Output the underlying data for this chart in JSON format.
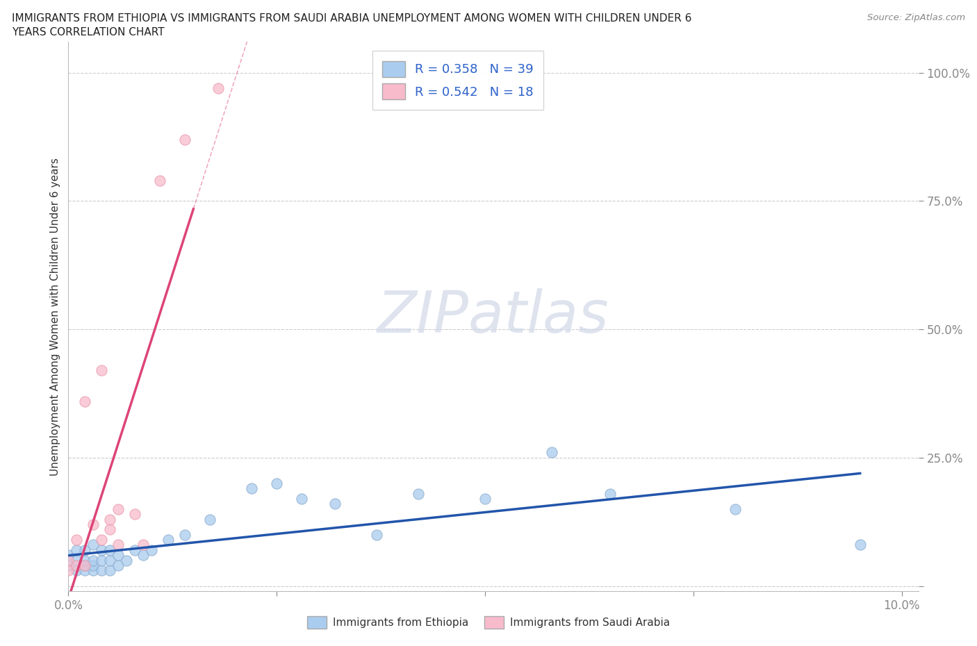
{
  "title_line1": "IMMIGRANTS FROM ETHIOPIA VS IMMIGRANTS FROM SAUDI ARABIA UNEMPLOYMENT AMONG WOMEN WITH CHILDREN UNDER 6",
  "title_line2": "YEARS CORRELATION CHART",
  "source": "Source: ZipAtlas.com",
  "ylabel": "Unemployment Among Women with Children Under 6 years",
  "xlim": [
    0.0,
    0.102
  ],
  "ylim": [
    -0.01,
    1.06
  ],
  "xtick_positions": [
    0.0,
    0.025,
    0.05,
    0.075,
    0.1
  ],
  "xticklabels": [
    "0.0%",
    "",
    "",
    "",
    "10.0%"
  ],
  "ytick_positions": [
    0.0,
    0.25,
    0.5,
    0.75,
    1.0
  ],
  "yticklabels": [
    "",
    "25.0%",
    "50.0%",
    "75.0%",
    "100.0%"
  ],
  "background_color": "#ffffff",
  "grid_color": "#cccccc",
  "watermark_text": "ZIPatlas",
  "ethiopia_fill": "#aaccee",
  "ethiopia_edge": "#88aacc",
  "ethiopia_line": "#2255aa",
  "saudi_fill": "#f8bbcc",
  "saudi_edge": "#e899aa",
  "saudi_line": "#dd4477",
  "legend_eth_label": "R = 0.358   N = 39",
  "legend_sau_label": "R = 0.542   N = 18",
  "bottom_eth_label": "Immigrants from Ethiopia",
  "bottom_sau_label": "Immigrants from Saudi Arabia",
  "ethiopia_x": [
    0.0,
    0.0,
    0.001,
    0.001,
    0.001,
    0.002,
    0.002,
    0.002,
    0.002,
    0.003,
    0.003,
    0.003,
    0.003,
    0.004,
    0.004,
    0.004,
    0.005,
    0.005,
    0.005,
    0.006,
    0.006,
    0.007,
    0.008,
    0.009,
    0.01,
    0.012,
    0.014,
    0.017,
    0.022,
    0.025,
    0.028,
    0.032,
    0.037,
    0.042,
    0.05,
    0.058,
    0.065,
    0.08,
    0.095
  ],
  "ethiopia_y": [
    0.04,
    0.06,
    0.03,
    0.05,
    0.07,
    0.03,
    0.04,
    0.05,
    0.07,
    0.03,
    0.04,
    0.05,
    0.08,
    0.03,
    0.05,
    0.07,
    0.03,
    0.05,
    0.07,
    0.04,
    0.06,
    0.05,
    0.07,
    0.06,
    0.07,
    0.09,
    0.1,
    0.13,
    0.19,
    0.2,
    0.17,
    0.16,
    0.1,
    0.18,
    0.17,
    0.26,
    0.18,
    0.15,
    0.08
  ],
  "saudi_x": [
    0.0,
    0.0,
    0.001,
    0.001,
    0.002,
    0.002,
    0.003,
    0.004,
    0.004,
    0.005,
    0.005,
    0.006,
    0.006,
    0.008,
    0.009,
    0.011,
    0.014,
    0.018
  ],
  "saudi_y": [
    0.03,
    0.05,
    0.04,
    0.09,
    0.04,
    0.36,
    0.12,
    0.09,
    0.42,
    0.11,
    0.13,
    0.08,
    0.15,
    0.14,
    0.08,
    0.79,
    0.87,
    0.97
  ]
}
